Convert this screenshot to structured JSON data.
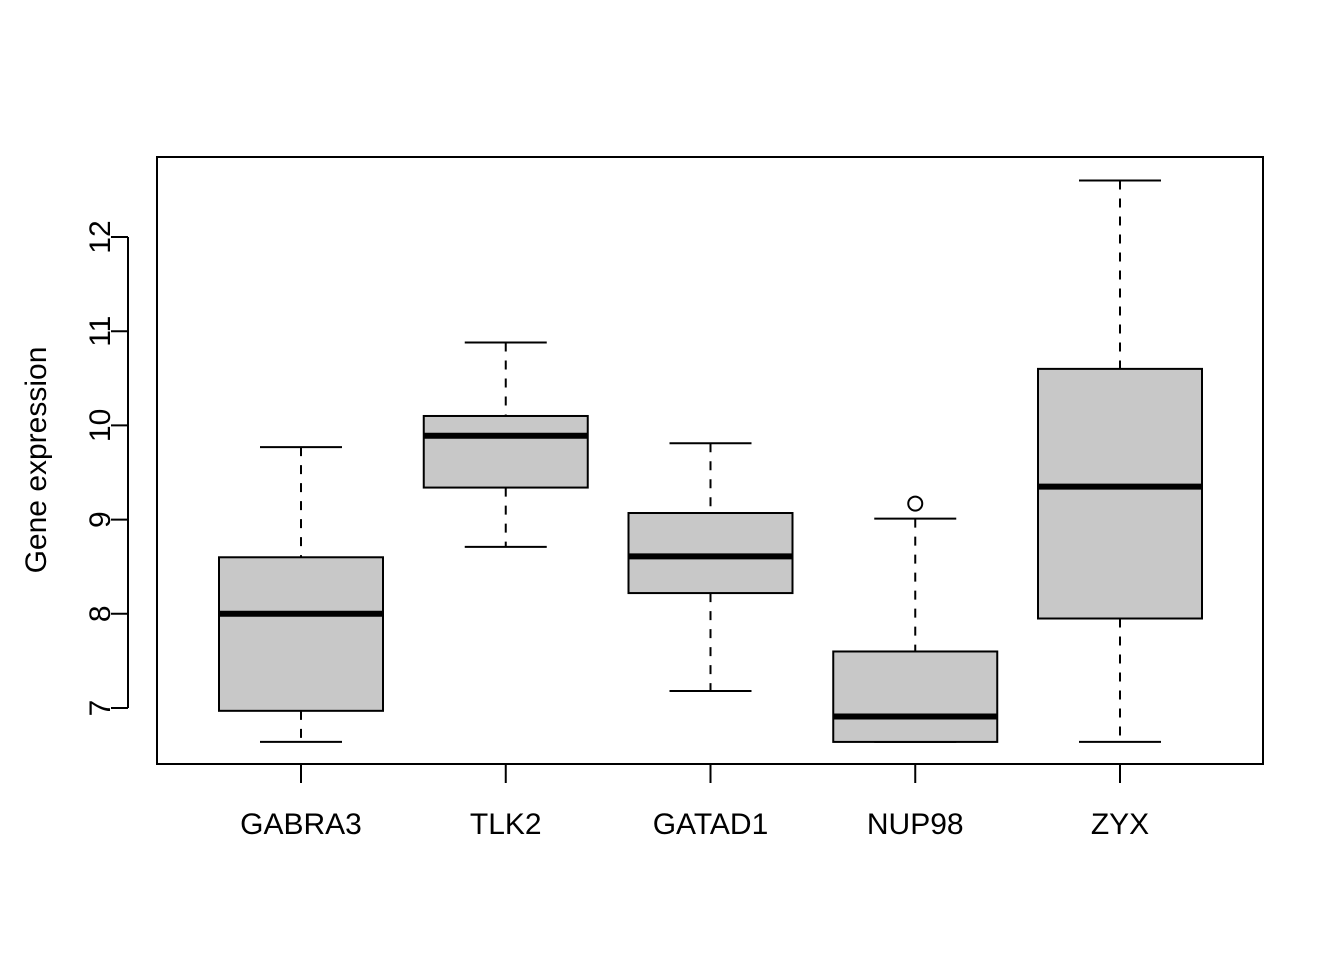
{
  "chart_data": {
    "type": "boxplot",
    "title": "",
    "xlabel": "",
    "ylabel": "Gene expression",
    "ylim": [
      6.41,
      12.85
    ],
    "yticks": [
      7,
      8,
      9,
      10,
      11,
      12
    ],
    "grid": false,
    "legend": "none",
    "box_fill": "#c8c8c8",
    "line_color": "#000000",
    "categories": [
      "GABRA3",
      "TLK2",
      "GATAD1",
      "NUP98",
      "ZYX"
    ],
    "boxes": [
      {
        "name": "GABRA3",
        "whisker_low": 6.64,
        "q1": 6.97,
        "median": 8.0,
        "q3": 8.6,
        "whisker_high": 9.77,
        "outliers": []
      },
      {
        "name": "TLK2",
        "whisker_low": 8.71,
        "q1": 9.34,
        "median": 9.89,
        "q3": 10.1,
        "whisker_high": 10.88,
        "outliers": []
      },
      {
        "name": "GATAD1",
        "whisker_low": 7.18,
        "q1": 8.22,
        "median": 8.61,
        "q3": 9.07,
        "whisker_high": 9.81,
        "outliers": []
      },
      {
        "name": "NUP98",
        "whisker_low": 6.64,
        "q1": 6.64,
        "median": 6.91,
        "q3": 7.6,
        "whisker_high": 9.01,
        "outliers": [
          9.17
        ]
      },
      {
        "name": "ZYX",
        "whisker_low": 6.64,
        "q1": 7.95,
        "median": 9.35,
        "q3": 10.6,
        "whisker_high": 12.6,
        "outliers": []
      }
    ]
  }
}
